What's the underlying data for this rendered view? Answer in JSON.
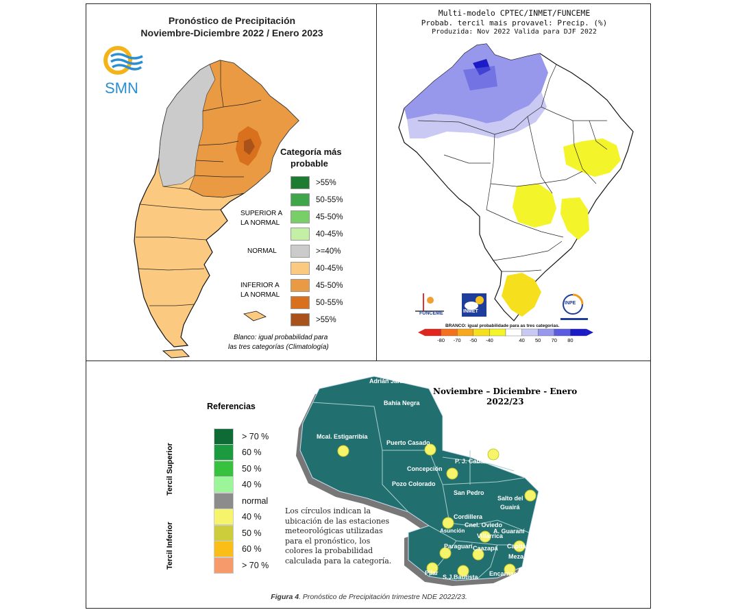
{
  "panel_arg": {
    "title_line1": "Pronóstico de Precipitación",
    "title_line2": "Noviembre-Diciembre 2022 / Enero 2023",
    "logo_text": "SMN",
    "legend_title_line1": "Categoría más",
    "legend_title_line2": "probable",
    "group_superior": [
      "SUPERIOR A",
      "LA NORMAL"
    ],
    "group_normal": "NORMAL",
    "group_inferior": [
      "INFERIOR A",
      "LA NORMAL"
    ],
    "legend": [
      {
        "label": ">55%",
        "color": "#1e7b32"
      },
      {
        "label": "50-55%",
        "color": "#3fa64a"
      },
      {
        "label": "45-50%",
        "color": "#79cf67"
      },
      {
        "label": "40-45%",
        "color": "#c4f0a6"
      },
      {
        "label": ">=40%",
        "color": "#cbcbcb"
      },
      {
        "label": "40-45%",
        "color": "#fbc97f"
      },
      {
        "label": "45-50%",
        "color": "#e99a42"
      },
      {
        "label": "50-55%",
        "color": "#d8701e"
      },
      {
        "label": ">55%",
        "color": "#a9531a"
      }
    ],
    "note_line1": "Blanco: igual probabilidad para",
    "note_line2": "las tres categorías (Climatología)"
  },
  "panel_bra": {
    "title_line1": "Multi-modelo CPTEC/INMET/FUNCEME",
    "title_line2": "Probab. tercil mais provavel: Precip. (%)",
    "title_line3": "Produzida: Nov 2022  Valida para DJF 2022",
    "logo_funceme": "FUNCEME",
    "logo_inmet": "INMET",
    "logo_inpe": "INPE",
    "branco_note": "BRANCO: igual probabilidade para as tres categorias.",
    "colorbar_ticks": [
      "-80",
      "-70",
      "-50",
      "-40",
      "40",
      "50",
      "70",
      "80"
    ],
    "colorbar_colors": [
      "#e3261d",
      "#f3711e",
      "#f7a81d",
      "#f6e01d",
      "#f4f42a",
      "#ffffff",
      "#c9c9f4",
      "#9797ec",
      "#5b5be0",
      "#1c1cc6"
    ]
  },
  "panel_par": {
    "title_line1": "Noviembre – Diciembre - Enero",
    "title_line2": "2022/23",
    "refs_title": "Referencias",
    "axis_superior": "Tercil Superior",
    "axis_inferior": "Tercil Inferior",
    "legend": [
      {
        "label": "> 70 %",
        "color": "#0f6b36"
      },
      {
        "label": "60 %",
        "color": "#1c9a40"
      },
      {
        "label": "50 %",
        "color": "#37c13f"
      },
      {
        "label": "40 %",
        "color": "#9df59a"
      },
      {
        "label": "normal",
        "color": "#8c8c8c"
      },
      {
        "label": "40 %",
        "color": "#f6f46a"
      },
      {
        "label": "50 %",
        "color": "#cdcc3a"
      },
      {
        "label": "60 %",
        "color": "#fbbd17"
      },
      {
        "label": "> 70 %",
        "color": "#f79a6b"
      }
    ],
    "note": [
      "Los círculos indican la",
      "ubicación de las estaciones",
      "meteorológicas utilizadas",
      "para el pronóstico, los",
      "colores la probabilidad",
      "calculada para la categoría."
    ],
    "places": [
      "Adrián Jara",
      "Bahía Negra",
      "Mcal. Estigarribia",
      "Puerto Casado",
      "P. J. Caballero",
      "Concepción",
      "Pozo Colorado",
      "San Pedro",
      "Salto del",
      "Guairá",
      "Cordillera",
      "Cnel. Oviedo",
      "Asunción",
      "Villarrica",
      "A. Guaraní",
      "Paraguarí",
      "Caazapá",
      "Capitán",
      "Meza",
      "Pilar",
      "S.J.Bautista",
      "Encarnación"
    ],
    "caption_bold": "Figura 4",
    "caption_rest": ". Pronóstico de Precipitación trimestre NDE 2022/23."
  }
}
